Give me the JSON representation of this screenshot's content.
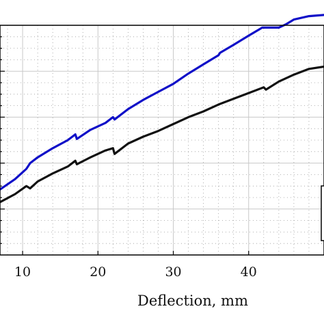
{
  "chart_data": {
    "type": "line",
    "title": "",
    "xlabel": "Deflection, mm",
    "ylabel": "",
    "xlim": [
      7,
      50
    ],
    "ylim": [
      0,
      1
    ],
    "x_ticks": [
      10,
      20,
      30,
      40
    ],
    "x_tick_labels": [
      "10",
      "20",
      "30",
      "40"
    ],
    "grid": true,
    "legend_position": "right, partially cropped",
    "series": [
      {
        "color": "#1010c8",
        "x": [
          7,
          9,
          10.5,
          11,
          12,
          14,
          16,
          17,
          17.2,
          19,
          21,
          22,
          22.2,
          24,
          26,
          28,
          30,
          32,
          34,
          36,
          36.2,
          38,
          40,
          41.8,
          42.5,
          44,
          45,
          46,
          48,
          50
        ],
        "y": [
          0.285,
          0.33,
          0.375,
          0.4,
          0.425,
          0.465,
          0.5,
          0.525,
          0.505,
          0.545,
          0.575,
          0.6,
          0.59,
          0.635,
          0.675,
          0.71,
          0.745,
          0.79,
          0.83,
          0.87,
          0.88,
          0.915,
          0.955,
          0.99,
          0.99,
          0.99,
          1.005,
          1.025,
          1.04,
          1.045
        ]
      },
      {
        "color": "#111111",
        "x": [
          7,
          9,
          10.5,
          11,
          12,
          14,
          16,
          17,
          17.2,
          19,
          21,
          22,
          22.2,
          24,
          26,
          28,
          30,
          32,
          34,
          36,
          38,
          40,
          42,
          42.3,
          44,
          46,
          48,
          50
        ],
        "y": [
          0.23,
          0.265,
          0.3,
          0.29,
          0.32,
          0.355,
          0.385,
          0.41,
          0.395,
          0.425,
          0.455,
          0.465,
          0.44,
          0.485,
          0.515,
          0.54,
          0.57,
          0.6,
          0.625,
          0.655,
          0.68,
          0.705,
          0.73,
          0.72,
          0.755,
          0.785,
          0.81,
          0.82
        ]
      }
    ]
  }
}
